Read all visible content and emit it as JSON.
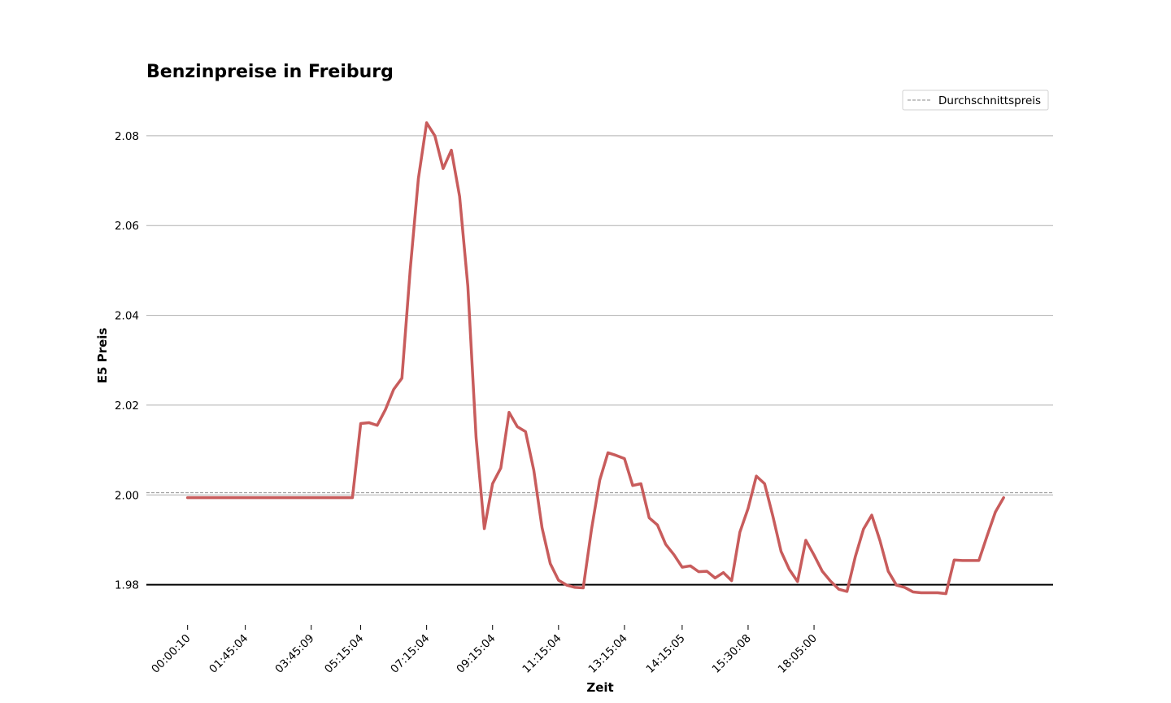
{
  "chart_data": {
    "type": "line",
    "title": "Benzinpreise in Freiburg",
    "xlabel": "Zeit",
    "ylabel": "E5 Preis",
    "ylim": [
      1.9725,
      2.0885
    ],
    "yticks": [
      "1.98",
      "2.00",
      "2.02",
      "2.04",
      "2.06",
      "2.08"
    ],
    "yticks_values": [
      1.98,
      2.0,
      2.02,
      2.04,
      2.06,
      2.08
    ],
    "xticks": [
      {
        "index": 0,
        "label": "00:00:10"
      },
      {
        "index": 7,
        "label": "01:45:04"
      },
      {
        "index": 15,
        "label": "03:45:09"
      },
      {
        "index": 21,
        "label": "05:15:04"
      },
      {
        "index": 29,
        "label": "07:15:04"
      },
      {
        "index": 37,
        "label": "09:15:04"
      },
      {
        "index": 45,
        "label": "11:15:04"
      },
      {
        "index": 53,
        "label": "13:15:04"
      },
      {
        "index": 60,
        "label": "14:15:05"
      },
      {
        "index": 68,
        "label": "15:30:08"
      },
      {
        "index": 76,
        "label": "18:05:00"
      }
    ],
    "xlim": [
      -5,
      105
    ],
    "grid": "y",
    "legend_position": "top-right",
    "average_line": {
      "name": "Durchschnittspreis",
      "value": 2.0005,
      "color": "#a0a0a0"
    },
    "baseline": {
      "value": 1.98,
      "color": "#000000"
    },
    "series": [
      {
        "color": "#c85c5c",
        "values": [
          1.9994,
          1.9994,
          1.9994,
          1.9994,
          1.9994,
          1.9994,
          1.9994,
          1.9994,
          1.9994,
          1.9994,
          1.9994,
          1.9994,
          1.9994,
          1.9994,
          1.9994,
          1.9994,
          1.9994,
          1.9994,
          1.9994,
          1.9994,
          1.9994,
          2.0159,
          2.0161,
          2.0155,
          2.019,
          2.0235,
          2.026,
          2.05,
          2.0705,
          2.0829,
          2.08,
          2.0727,
          2.0768,
          2.0665,
          2.0465,
          2.0128,
          1.9925,
          2.0025,
          2.006,
          2.0184,
          2.0152,
          2.0141,
          2.0055,
          1.9927,
          1.9847,
          1.981,
          1.9799,
          1.9794,
          1.9793,
          1.9923,
          2.0033,
          2.0094,
          2.0088,
          2.0081,
          2.0021,
          2.0025,
          1.9949,
          1.9933,
          1.989,
          1.9867,
          1.9839,
          1.9842,
          1.9829,
          1.983,
          1.9815,
          1.9827,
          1.9809,
          1.9917,
          1.997,
          2.0042,
          2.0025,
          1.9953,
          1.9874,
          1.9834,
          1.9807,
          1.9899,
          1.9866,
          1.983,
          1.9808,
          1.979,
          1.9785,
          1.9862,
          1.9924,
          1.9955,
          1.9898,
          1.983,
          1.9799,
          1.9794,
          1.9784,
          1.9782,
          1.9782,
          1.9782,
          1.978,
          1.9855,
          1.9854,
          1.9854,
          1.9854,
          1.9909,
          1.9962,
          1.9994
        ]
      }
    ]
  }
}
